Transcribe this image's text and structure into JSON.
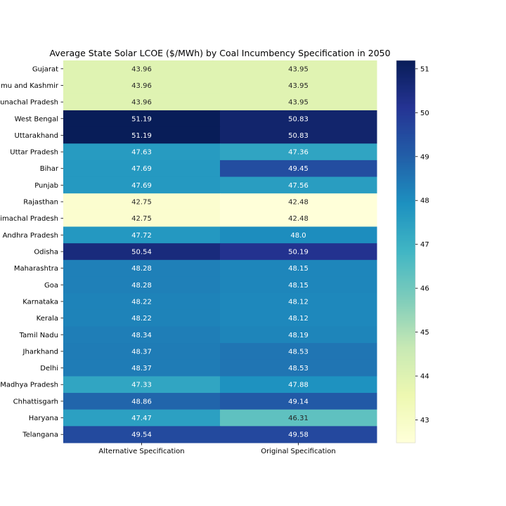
{
  "chart_data": {
    "type": "heatmap",
    "title": "Average State Solar LCOE ($/MWh) by Coal Incumbency Specification in 2050",
    "columns": [
      "Alternative Specification",
      "Original Specification"
    ],
    "rows": [
      "Gujarat",
      "mu and Kashmir",
      "unachal Pradesh",
      "West Bengal",
      "Uttarakhand",
      "Uttar Pradesh",
      "Bihar",
      "Punjab",
      "Rajasthan",
      "imachal Pradesh",
      "Andhra Pradesh",
      "Odisha",
      "Maharashtra",
      "Goa",
      "Karnataka",
      "Kerala",
      "Tamil Nadu",
      "Jharkhand",
      "Delhi",
      "Madhya Pradesh",
      "Chhattisgarh",
      "Haryana",
      "Telangana"
    ],
    "values": [
      [
        43.96,
        43.95
      ],
      [
        43.96,
        43.95
      ],
      [
        43.96,
        43.95
      ],
      [
        51.19,
        50.83
      ],
      [
        51.19,
        50.83
      ],
      [
        47.63,
        47.36
      ],
      [
        47.69,
        49.45
      ],
      [
        47.69,
        47.56
      ],
      [
        42.75,
        42.48
      ],
      [
        42.75,
        42.48
      ],
      [
        47.72,
        48.0
      ],
      [
        50.54,
        50.19
      ],
      [
        48.28,
        48.15
      ],
      [
        48.28,
        48.15
      ],
      [
        48.22,
        48.12
      ],
      [
        48.22,
        48.12
      ],
      [
        48.34,
        48.19
      ],
      [
        48.37,
        48.53
      ],
      [
        48.37,
        48.53
      ],
      [
        47.33,
        47.88
      ],
      [
        48.86,
        49.14
      ],
      [
        47.47,
        46.31
      ],
      [
        49.54,
        49.58
      ]
    ],
    "value_labels": [
      [
        "43.96",
        "43.95"
      ],
      [
        "43.96",
        "43.95"
      ],
      [
        "43.96",
        "43.95"
      ],
      [
        "51.19",
        "50.83"
      ],
      [
        "51.19",
        "50.83"
      ],
      [
        "47.63",
        "47.36"
      ],
      [
        "47.69",
        "49.45"
      ],
      [
        "47.69",
        "47.56"
      ],
      [
        "42.75",
        "42.48"
      ],
      [
        "42.75",
        "42.48"
      ],
      [
        "47.72",
        "48.0"
      ],
      [
        "50.54",
        "50.19"
      ],
      [
        "48.28",
        "48.15"
      ],
      [
        "48.28",
        "48.15"
      ],
      [
        "48.22",
        "48.12"
      ],
      [
        "48.22",
        "48.12"
      ],
      [
        "48.34",
        "48.19"
      ],
      [
        "48.37",
        "48.53"
      ],
      [
        "48.37",
        "48.53"
      ],
      [
        "47.33",
        "47.88"
      ],
      [
        "48.86",
        "49.14"
      ],
      [
        "47.47",
        "46.31"
      ],
      [
        "49.54",
        "49.58"
      ]
    ],
    "colorscale": "YlGnBu",
    "vmin": 42.48,
    "vmax": 51.19,
    "colorbar_ticks": [
      "43",
      "44",
      "45",
      "46",
      "47",
      "48",
      "49",
      "50",
      "51"
    ],
    "grid": false,
    "legend": "colorbar-right"
  }
}
